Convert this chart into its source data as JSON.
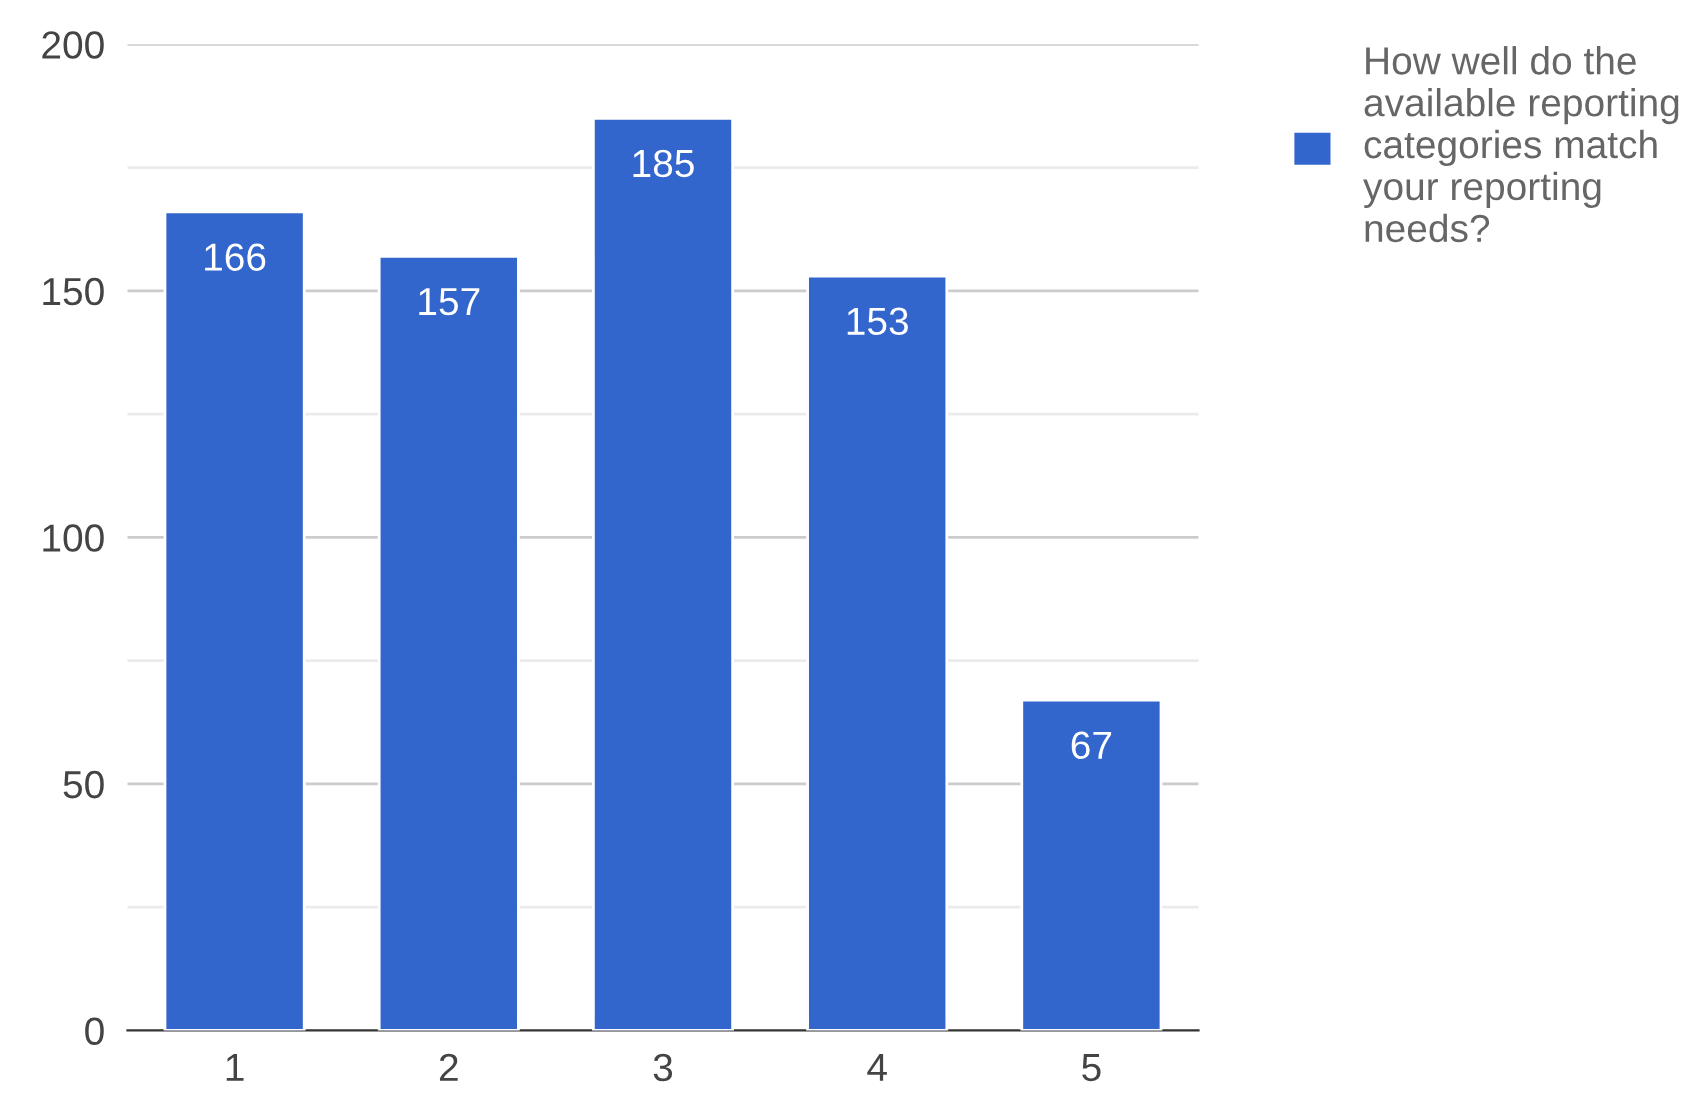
{
  "chart_data": {
    "type": "bar",
    "categories": [
      "1",
      "2",
      "3",
      "4",
      "5"
    ],
    "series": [
      {
        "name": "How well do the available reporting categories match your reporting needs?",
        "color": "#3366cc",
        "values": [
          166,
          157,
          185,
          153,
          67
        ]
      }
    ],
    "ylim": [
      0,
      200
    ],
    "yticks": [
      0,
      {
        "value": 25,
        "label": null
      },
      50,
      {
        "value": 75,
        "label": null
      },
      100,
      {
        "value": 125,
        "label": null
      },
      150,
      {
        "value": 175,
        "label": null
      },
      200
    ],
    "grid": "y",
    "legend": "top right",
    "data_labels": true
  }
}
